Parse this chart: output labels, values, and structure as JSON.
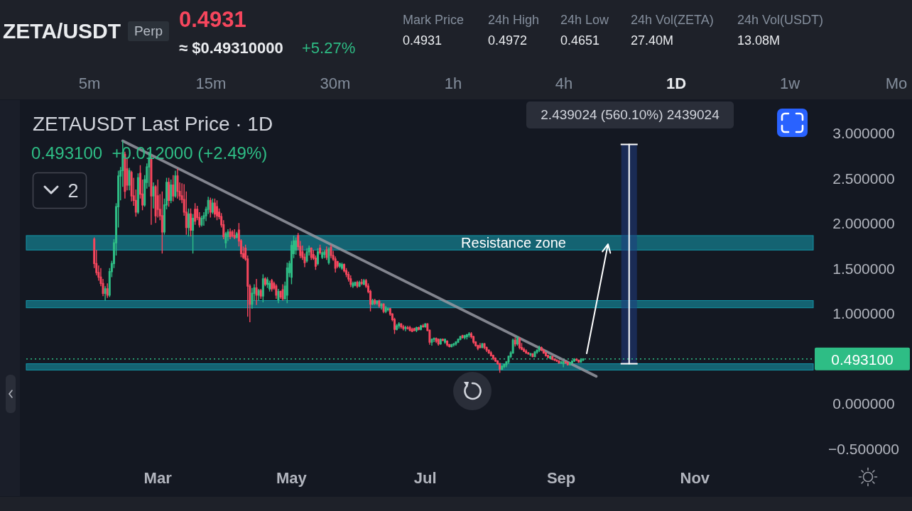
{
  "chart_data": [
    {
      "type": "other",
      "title": "ZETA/USDT",
      "annotations": [
        "Perp",
        "0.4931",
        "≈ $0.49310000",
        "+5.27%",
        "Mark Price",
        "0.4931",
        "24h High",
        "0.4972",
        "24h Low",
        "0.4651",
        "24h Vol(ZETA)",
        "27.40M",
        "24h Vol(USDT)",
        "13.08M",
        "5m",
        "15m",
        "30m",
        "1h",
        "4h",
        "1D",
        "1w",
        "Mo"
      ]
    },
    {
      "type": "candlestick",
      "title": "ZETAUSDT Last Price · 1D",
      "subtitle": "0.493100  +0.012000 (+2.49%)",
      "x": [
        "--02-01",
        "--02-02",
        "--02-03",
        "--02-04",
        "--02-05",
        "--02-06",
        "--02-07",
        "--02-08",
        "--02-09",
        "--02-10",
        "--02-11",
        "--02-12",
        "--02-13",
        "--02-14",
        "--02-15",
        "--02-16",
        "--02-17",
        "--02-18",
        "--02-19",
        "--02-20",
        "--02-21",
        "--02-22",
        "--02-23",
        "--02-24",
        "--02-25",
        "--02-26",
        "--02-27",
        "--02-28",
        "--02-29",
        "--03-01",
        "--03-02",
        "--03-03",
        "--03-04",
        "--03-05",
        "--03-06",
        "--03-07",
        "--03-08",
        "--03-09",
        "--03-10",
        "--03-11",
        "--03-12",
        "--03-13",
        "--03-14",
        "--03-15",
        "--03-16",
        "--03-17",
        "--03-18",
        "--03-19",
        "--03-20",
        "--03-21",
        "--03-22",
        "--03-23",
        "--03-24",
        "--03-25",
        "--03-26",
        "--03-27",
        "--03-28",
        "--03-29",
        "--03-30",
        "--03-31",
        "--04-01",
        "--04-02",
        "--04-03",
        "--04-04",
        "--04-05",
        "--04-06",
        "--04-07",
        "--04-08",
        "--04-09",
        "--04-10",
        "--04-11",
        "--04-12",
        "--04-13",
        "--04-14",
        "--04-15",
        "--04-16",
        "--04-17",
        "--04-18",
        "--04-19",
        "--04-20",
        "--04-21",
        "--04-22",
        "--04-23",
        "--04-24",
        "--04-25",
        "--04-26",
        "--04-27",
        "--04-28",
        "--04-29",
        "--04-30",
        "--05-01",
        "--05-02",
        "--05-03",
        "--05-04",
        "--05-05",
        "--05-06",
        "--05-07",
        "--05-08",
        "--05-09",
        "--05-10",
        "--05-11",
        "--05-12",
        "--05-13",
        "--05-14",
        "--05-15",
        "--05-16",
        "--05-17",
        "--05-18",
        "--05-19",
        "--05-20",
        "--05-21",
        "--05-22",
        "--05-23",
        "--05-24",
        "--05-25",
        "--05-26",
        "--05-27",
        "--05-28",
        "--05-29",
        "--05-30",
        "--05-31",
        "--06-01",
        "--06-02",
        "--06-03",
        "--06-04",
        "--06-05",
        "--06-06",
        "--06-07",
        "--06-08",
        "--06-09",
        "--06-10",
        "--06-11",
        "--06-12",
        "--06-13",
        "--06-14",
        "--06-15",
        "--06-16",
        "--06-17",
        "--06-18",
        "--06-19",
        "--06-20",
        "--06-21",
        "--06-22",
        "--06-23",
        "--06-24",
        "--06-25",
        "--06-26",
        "--06-27",
        "--06-28",
        "--06-29",
        "--06-30",
        "--07-01",
        "--07-02",
        "--07-03",
        "--07-04",
        "--07-05",
        "--07-06",
        "--07-07",
        "--07-08",
        "--07-09",
        "--07-10",
        "--07-11",
        "--07-12",
        "--07-13",
        "--07-14",
        "--07-15",
        "--07-16",
        "--07-17",
        "--07-18",
        "--07-19",
        "--07-20",
        "--07-21",
        "--07-22",
        "--07-23",
        "--07-24",
        "--07-25",
        "--07-26",
        "--07-27",
        "--07-28",
        "--07-29",
        "--07-30",
        "--07-31",
        "--08-01",
        "--08-02",
        "--08-03",
        "--08-04",
        "--08-05",
        "--08-06",
        "--08-07",
        "--08-08",
        "--08-09",
        "--08-10",
        "--08-11",
        "--08-12",
        "--08-13",
        "--08-14",
        "--08-15",
        "--08-16",
        "--08-17",
        "--08-18",
        "--08-19",
        "--08-20",
        "--08-21",
        "--08-22",
        "--08-23",
        "--08-24",
        "--08-25",
        "--08-26",
        "--08-27",
        "--08-28",
        "--08-29",
        "--08-30",
        "--08-31",
        "--09-01",
        "--09-02",
        "--09-03",
        "--09-04",
        "--09-05",
        "--09-06",
        "--09-07",
        "--09-08",
        "--09-09",
        "--09-10",
        "--09-11"
      ],
      "ohlc": [
        [
          1.82,
          1.84,
          1.5,
          1.55
        ],
        [
          1.55,
          1.7,
          1.42,
          1.45
        ],
        [
          1.45,
          1.53,
          1.36,
          1.4
        ],
        [
          1.4,
          1.5,
          1.3,
          1.33
        ],
        [
          1.33,
          1.38,
          1.19,
          1.22
        ],
        [
          1.22,
          1.3,
          1.14,
          1.27
        ],
        [
          1.27,
          1.33,
          1.17,
          1.2
        ],
        [
          1.2,
          1.5,
          1.18,
          1.46
        ],
        [
          1.46,
          1.58,
          1.4,
          1.55
        ],
        [
          1.55,
          1.82,
          1.5,
          1.78
        ],
        [
          1.78,
          2.22,
          1.64,
          2.18
        ],
        [
          2.18,
          2.58,
          1.95,
          2.52
        ],
        [
          2.52,
          2.62,
          2.25,
          2.58
        ],
        [
          2.58,
          2.91,
          2.4,
          2.78
        ],
        [
          2.76,
          2.79,
          2.27,
          2.35
        ],
        [
          2.6,
          2.71,
          2.36,
          2.42
        ],
        [
          2.42,
          2.61,
          2.36,
          2.58
        ],
        [
          2.56,
          2.58,
          2.24,
          2.3
        ],
        [
          2.3,
          2.5,
          2.19,
          2.25
        ],
        [
          2.25,
          2.37,
          2.07,
          2.12
        ],
        [
          2.12,
          2.55,
          2.1,
          2.5
        ],
        [
          2.55,
          2.64,
          2.27,
          2.32
        ],
        [
          2.32,
          2.48,
          2.14,
          2.2
        ],
        [
          2.2,
          2.53,
          2.18,
          2.48
        ],
        [
          2.45,
          2.66,
          2.38,
          2.62
        ],
        [
          2.62,
          2.79,
          2.4,
          2.72
        ],
        [
          2.72,
          2.75,
          1.98,
          2.3
        ],
        [
          2.3,
          2.45,
          2.16,
          2.4
        ],
        [
          2.4,
          2.42,
          2.0,
          2.08
        ],
        [
          2.3,
          2.48,
          2.06,
          2.15
        ],
        [
          2.15,
          2.32,
          2.03,
          2.08
        ],
        [
          2.08,
          2.35,
          1.66,
          1.9
        ],
        [
          1.9,
          2.27,
          1.87,
          2.2
        ],
        [
          2.2,
          2.5,
          2.15,
          2.45
        ],
        [
          2.45,
          2.5,
          2.18,
          2.25
        ],
        [
          2.25,
          2.48,
          2.22,
          2.42
        ],
        [
          2.42,
          2.53,
          2.24,
          2.3
        ],
        [
          2.3,
          2.58,
          2.28,
          2.52
        ],
        [
          2.52,
          2.6,
          2.27,
          2.35
        ],
        [
          2.35,
          2.45,
          2.25,
          2.3
        ],
        [
          2.3,
          2.44,
          2.22,
          2.26
        ],
        [
          2.26,
          2.43,
          2.08,
          2.12
        ],
        [
          2.12,
          2.35,
          1.87,
          1.95
        ],
        [
          1.95,
          2.16,
          1.85,
          2.1
        ],
        [
          2.1,
          2.16,
          1.85,
          1.92
        ],
        [
          1.92,
          2.1,
          1.66,
          2.05
        ],
        [
          2.15,
          2.22,
          1.98,
          2.02
        ],
        [
          2.15,
          2.19,
          2.03,
          2.06
        ],
        [
          2.06,
          2.12,
          1.95,
          1.98
        ],
        [
          1.98,
          2.08,
          1.96,
          2.05
        ],
        [
          2.05,
          2.12,
          1.97,
          2.08
        ],
        [
          2.08,
          2.18,
          2.02,
          2.15
        ],
        [
          2.15,
          2.29,
          2.1,
          2.25
        ],
        [
          2.25,
          2.28,
          2.06,
          2.12
        ],
        [
          2.12,
          2.27,
          2.1,
          2.22
        ],
        [
          2.22,
          2.27,
          2.06,
          2.1
        ],
        [
          2.18,
          2.25,
          2.03,
          2.08
        ],
        [
          2.12,
          2.16,
          2.04,
          2.07
        ],
        [
          2.07,
          2.11,
          1.95,
          1.98
        ],
        [
          1.98,
          2.03,
          1.82,
          1.85
        ],
        [
          1.78,
          1.9,
          1.72,
          1.88
        ],
        [
          1.85,
          1.93,
          1.8,
          1.9
        ],
        [
          1.9,
          1.94,
          1.82,
          1.85
        ],
        [
          1.9,
          1.92,
          1.84,
          1.86
        ],
        [
          1.86,
          1.93,
          1.82,
          1.84
        ],
        [
          1.84,
          1.9,
          1.83,
          1.88
        ],
        [
          1.92,
          2.0,
          1.74,
          1.8
        ],
        [
          1.8,
          1.82,
          1.62,
          1.66
        ],
        [
          1.66,
          1.74,
          1.6,
          1.62
        ],
        [
          1.72,
          1.76,
          1.58,
          1.6
        ],
        [
          1.6,
          1.64,
          0.96,
          1.3
        ],
        [
          1.3,
          1.32,
          0.9,
          1.1
        ],
        [
          1.1,
          1.28,
          1.05,
          1.22
        ],
        [
          1.22,
          1.32,
          1.14,
          1.28
        ],
        [
          1.28,
          1.38,
          1.09,
          1.2
        ],
        [
          1.2,
          1.27,
          1.14,
          1.25
        ],
        [
          1.25,
          1.27,
          1.16,
          1.19
        ],
        [
          1.19,
          1.43,
          1.12,
          1.38
        ],
        [
          1.38,
          1.4,
          1.3,
          1.32
        ],
        [
          1.32,
          1.4,
          1.28,
          1.37
        ],
        [
          1.27,
          1.36,
          1.24,
          1.33
        ],
        [
          1.36,
          1.38,
          1.24,
          1.27
        ],
        [
          1.33,
          1.35,
          1.26,
          1.28
        ],
        [
          1.3,
          1.32,
          1.16,
          1.2
        ],
        [
          1.15,
          1.27,
          1.11,
          1.24
        ],
        [
          1.24,
          1.25,
          1.16,
          1.18
        ],
        [
          1.26,
          1.32,
          1.14,
          1.16
        ],
        [
          1.16,
          1.35,
          1.15,
          1.3
        ],
        [
          1.2,
          1.56,
          1.11,
          1.5
        ],
        [
          1.45,
          1.58,
          1.4,
          1.55
        ],
        [
          1.4,
          1.8,
          1.32,
          1.75
        ],
        [
          1.66,
          1.86,
          1.61,
          1.8
        ],
        [
          1.7,
          1.84,
          1.65,
          1.8
        ],
        [
          1.86,
          1.89,
          1.7,
          1.74
        ],
        [
          1.74,
          1.8,
          1.61,
          1.64
        ],
        [
          1.68,
          1.75,
          1.59,
          1.62
        ],
        [
          1.62,
          1.66,
          1.51,
          1.56
        ],
        [
          1.58,
          1.72,
          1.56,
          1.68
        ],
        [
          1.68,
          1.75,
          1.64,
          1.72
        ],
        [
          1.72,
          1.73,
          1.59,
          1.62
        ],
        [
          1.65,
          1.7,
          1.59,
          1.61
        ],
        [
          1.61,
          1.64,
          1.48,
          1.52
        ],
        [
          1.55,
          1.72,
          1.53,
          1.68
        ],
        [
          1.72,
          1.76,
          1.65,
          1.67
        ],
        [
          1.62,
          1.69,
          1.6,
          1.67
        ],
        [
          1.65,
          1.7,
          1.61,
          1.68
        ],
        [
          1.7,
          1.74,
          1.59,
          1.62
        ],
        [
          1.56,
          1.73,
          1.54,
          1.71
        ],
        [
          1.73,
          1.76,
          1.61,
          1.64
        ],
        [
          1.64,
          1.69,
          1.58,
          1.6
        ],
        [
          1.6,
          1.63,
          1.45,
          1.5
        ],
        [
          1.57,
          1.58,
          1.5,
          1.52
        ],
        [
          1.52,
          1.56,
          1.5,
          1.55
        ],
        [
          1.5,
          1.56,
          1.48,
          1.54
        ],
        [
          1.54,
          1.55,
          1.45,
          1.47
        ],
        [
          1.47,
          1.5,
          1.4,
          1.43
        ],
        [
          1.43,
          1.46,
          1.35,
          1.38
        ],
        [
          1.38,
          1.42,
          1.29,
          1.32
        ],
        [
          1.3,
          1.35,
          1.28,
          1.33
        ],
        [
          1.31,
          1.35,
          1.3,
          1.34
        ],
        [
          1.34,
          1.36,
          1.28,
          1.3
        ],
        [
          1.3,
          1.36,
          1.29,
          1.34
        ],
        [
          1.34,
          1.38,
          1.31,
          1.33
        ],
        [
          1.32,
          1.38,
          1.31,
          1.36
        ],
        [
          1.36,
          1.38,
          1.28,
          1.3
        ],
        [
          1.3,
          1.33,
          1.22,
          1.24
        ],
        [
          1.24,
          1.26,
          1.02,
          1.1
        ],
        [
          1.1,
          1.16,
          1.09,
          1.14
        ],
        [
          1.14,
          1.16,
          1.09,
          1.11
        ],
        [
          1.11,
          1.14,
          1.09,
          1.13
        ],
        [
          1.13,
          1.15,
          1.06,
          1.08
        ],
        [
          1.08,
          1.11,
          1.04,
          1.1
        ],
        [
          1.1,
          1.11,
          1.0,
          1.02
        ],
        [
          1.02,
          1.08,
          1.0,
          1.06
        ],
        [
          1.04,
          1.06,
          1.02,
          1.05
        ],
        [
          1.05,
          1.06,
          0.97,
          0.99
        ],
        [
          0.99,
          1.0,
          0.91,
          0.93
        ],
        [
          0.93,
          0.95,
          0.77,
          0.82
        ],
        [
          0.82,
          0.88,
          0.81,
          0.86
        ],
        [
          0.86,
          0.9,
          0.83,
          0.88
        ],
        [
          0.88,
          0.89,
          0.83,
          0.85
        ],
        [
          0.85,
          0.87,
          0.81,
          0.83
        ],
        [
          0.83,
          0.86,
          0.8,
          0.84
        ],
        [
          0.84,
          0.86,
          0.82,
          0.83
        ],
        [
          0.84,
          0.86,
          0.8,
          0.81
        ],
        [
          0.82,
          0.84,
          0.79,
          0.8
        ],
        [
          0.83,
          0.84,
          0.8,
          0.81
        ],
        [
          0.81,
          0.85,
          0.79,
          0.84
        ],
        [
          0.84,
          0.85,
          0.81,
          0.82
        ],
        [
          0.82,
          0.87,
          0.81,
          0.86
        ],
        [
          0.86,
          0.88,
          0.84,
          0.85
        ],
        [
          0.85,
          0.89,
          0.84,
          0.88
        ],
        [
          0.88,
          0.89,
          0.8,
          0.81
        ],
        [
          0.81,
          0.82,
          0.65,
          0.68
        ],
        [
          0.68,
          0.72,
          0.64,
          0.71
        ],
        [
          0.71,
          0.73,
          0.68,
          0.72
        ],
        [
          0.72,
          0.73,
          0.67,
          0.69
        ],
        [
          0.71,
          0.72,
          0.64,
          0.66
        ],
        [
          0.66,
          0.72,
          0.65,
          0.71
        ],
        [
          0.71,
          0.72,
          0.69,
          0.7
        ],
        [
          0.68,
          0.72,
          0.66,
          0.71
        ],
        [
          0.69,
          0.7,
          0.63,
          0.65
        ],
        [
          0.65,
          0.66,
          0.62,
          0.63
        ],
        [
          0.63,
          0.66,
          0.62,
          0.65
        ],
        [
          0.65,
          0.67,
          0.63,
          0.66
        ],
        [
          0.66,
          0.69,
          0.64,
          0.68
        ],
        [
          0.68,
          0.72,
          0.67,
          0.71
        ],
        [
          0.71,
          0.75,
          0.7,
          0.74
        ],
        [
          0.75,
          0.76,
          0.72,
          0.73
        ],
        [
          0.73,
          0.76,
          0.71,
          0.75
        ],
        [
          0.74,
          0.77,
          0.71,
          0.76
        ],
        [
          0.76,
          0.79,
          0.73,
          0.77
        ],
        [
          0.77,
          0.79,
          0.72,
          0.74
        ],
        [
          0.74,
          0.75,
          0.66,
          0.68
        ],
        [
          0.68,
          0.69,
          0.63,
          0.64
        ],
        [
          0.64,
          0.65,
          0.59,
          0.61
        ],
        [
          0.64,
          0.67,
          0.61,
          0.62
        ],
        [
          0.62,
          0.67,
          0.61,
          0.66
        ],
        [
          0.66,
          0.67,
          0.6,
          0.62
        ],
        [
          0.62,
          0.63,
          0.57,
          0.59
        ],
        [
          0.59,
          0.6,
          0.55,
          0.56
        ],
        [
          0.56,
          0.58,
          0.52,
          0.53
        ],
        [
          0.53,
          0.54,
          0.48,
          0.5
        ],
        [
          0.5,
          0.51,
          0.46,
          0.47
        ],
        [
          0.47,
          0.48,
          0.43,
          0.44
        ],
        [
          0.44,
          0.45,
          0.34,
          0.38
        ],
        [
          0.38,
          0.42,
          0.37,
          0.41
        ],
        [
          0.41,
          0.44,
          0.39,
          0.43
        ],
        [
          0.43,
          0.47,
          0.4,
          0.46
        ],
        [
          0.46,
          0.53,
          0.44,
          0.52
        ],
        [
          0.52,
          0.58,
          0.5,
          0.56
        ],
        [
          0.56,
          0.72,
          0.55,
          0.7
        ],
        [
          0.7,
          0.73,
          0.63,
          0.66
        ],
        [
          0.66,
          0.75,
          0.64,
          0.72
        ],
        [
          0.72,
          0.73,
          0.6,
          0.62
        ],
        [
          0.62,
          0.67,
          0.59,
          0.6
        ],
        [
          0.6,
          0.62,
          0.57,
          0.58
        ],
        [
          0.58,
          0.6,
          0.55,
          0.56
        ],
        [
          0.56,
          0.57,
          0.54,
          0.55
        ],
        [
          0.54,
          0.56,
          0.52,
          0.55
        ],
        [
          0.55,
          0.55,
          0.51,
          0.52
        ],
        [
          0.52,
          0.58,
          0.51,
          0.57
        ],
        [
          0.57,
          0.6,
          0.55,
          0.59
        ],
        [
          0.59,
          0.64,
          0.57,
          0.62
        ],
        [
          0.62,
          0.63,
          0.58,
          0.59
        ],
        [
          0.59,
          0.6,
          0.55,
          0.56
        ],
        [
          0.56,
          0.57,
          0.52,
          0.53
        ],
        [
          0.53,
          0.54,
          0.5,
          0.51
        ],
        [
          0.5,
          0.53,
          0.49,
          0.52
        ],
        [
          0.52,
          0.52,
          0.48,
          0.49
        ],
        [
          0.49,
          0.5,
          0.47,
          0.48
        ],
        [
          0.48,
          0.49,
          0.46,
          0.47
        ],
        [
          0.47,
          0.48,
          0.44,
          0.45
        ],
        [
          0.45,
          0.47,
          0.44,
          0.46
        ],
        [
          0.44,
          0.47,
          0.4,
          0.46
        ],
        [
          0.46,
          0.47,
          0.44,
          0.45
        ],
        [
          0.45,
          0.46,
          0.42,
          0.43
        ],
        [
          0.43,
          0.46,
          0.42,
          0.45
        ],
        [
          0.45,
          0.48,
          0.44,
          0.47
        ],
        [
          0.47,
          0.5,
          0.46,
          0.49
        ],
        [
          0.49,
          0.5,
          0.47,
          0.48
        ],
        [
          0.48,
          0.48,
          0.45,
          0.46
        ],
        [
          0.46,
          0.5,
          0.45,
          0.48
        ],
        [
          0.48,
          0.5,
          0.47,
          0.4931
        ]
      ],
      "series": [
        {
          "type": "line",
          "x": [
            "--02-14",
            "--09-17"
          ],
          "values": [
            2.91,
            0.3
          ],
          "color": "#9598a1"
        },
        {
          "type": "line",
          "x": [
            "--10-02",
            "--10-02"
          ],
          "values": [
            0.44,
            2.87
          ],
          "color": "#ffffff"
        }
      ],
      "xlim": [
        "--01-01",
        "--12-25"
      ],
      "ylim": [
        -0.5,
        3.0
      ],
      "xticks": [
        {
          "value": "--03-01",
          "label": "Mar"
        },
        {
          "value": "--05-01",
          "label": "May"
        },
        {
          "value": "--07-01",
          "label": "Jul"
        },
        {
          "value": "--09-01",
          "label": "Sep"
        },
        {
          "value": "--11-01",
          "label": "Nov"
        }
      ],
      "yticks": [
        {
          "value": 3,
          "label": "3.000000"
        },
        {
          "value": 2.5,
          "label": "2.500000"
        },
        {
          "value": 2,
          "label": "2.000000"
        },
        {
          "value": 1.5,
          "label": "1.500000"
        },
        {
          "value": 1,
          "label": "1.000000"
        },
        {
          "value": 0,
          "label": "0.000000"
        },
        {
          "value": -0.5,
          "label": "−0.500000"
        }
      ],
      "bands": [
        {
          "axis": "y",
          "from": 1.7,
          "to": 1.86,
          "label": "Resistance zone",
          "color": "#1496a8"
        },
        {
          "axis": "y",
          "from": 1.06,
          "to": 1.14,
          "color": "#1496a8"
        },
        {
          "axis": "y",
          "from": 0.37,
          "to": 0.44,
          "color": "#1496a8"
        }
      ],
      "ref_lines": [
        {
          "axis": "y",
          "value": 0.4931,
          "label": "0.493100",
          "color": "#2ebd85",
          "line_style": "dotted"
        }
      ],
      "annotations": [
        "2",
        "2.439024 (560.10%) 2439024"
      ]
    }
  ]
}
